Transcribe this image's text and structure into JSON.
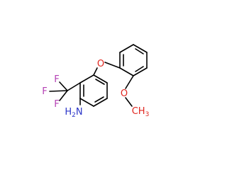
{
  "atoms": [
    {
      "parts": [
        "F"
      ],
      "color": "#b43fb4"
    },
    {
      "parts": [
        "F"
      ],
      "color": "#b43fb4"
    },
    {
      "parts": [
        "F"
      ],
      "color": "#b43fb4"
    },
    {
      "parts": [
        "O"
      ],
      "color": "#e0261f"
    },
    {
      "parts": [
        "O"
      ],
      "color": "#e0261f"
    },
    {
      "parts": [
        "CH",
        "3"
      ],
      "color": "#e0261f"
    },
    {
      "parts": [
        "H",
        "2",
        "N"
      ],
      "color": "#2b35c8"
    }
  ]
}
